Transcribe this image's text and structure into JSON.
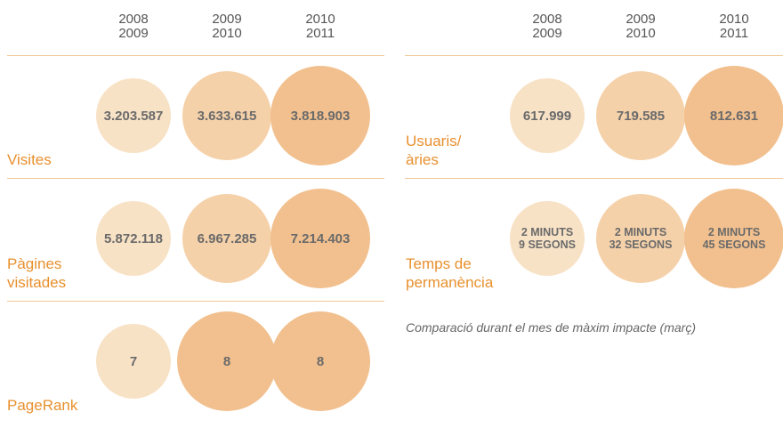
{
  "left": {
    "columns": [
      [
        "2008",
        "2009"
      ],
      [
        "2009",
        "2010"
      ],
      [
        "2010",
        "2011"
      ]
    ],
    "rows": [
      {
        "label": [
          "Visites"
        ],
        "values": [
          [
            "3.203.587"
          ],
          [
            "3.633.615"
          ],
          [
            "3.818.903"
          ]
        ]
      },
      {
        "label": [
          "Pàgines",
          "visitades"
        ],
        "values": [
          [
            "5.872.118"
          ],
          [
            "6.967.285"
          ],
          [
            "7.214.403"
          ]
        ]
      },
      {
        "label": [
          "PageRank"
        ],
        "values": [
          [
            "7"
          ],
          [
            "8"
          ],
          [
            "8"
          ]
        ]
      }
    ]
  },
  "right": {
    "columns": [
      [
        "2008",
        "2009"
      ],
      [
        "2009",
        "2010"
      ],
      [
        "2010",
        "2011"
      ]
    ],
    "rows": [
      {
        "label": [
          "Usuaris/",
          "àries"
        ],
        "values": [
          [
            "617.999"
          ],
          [
            "719.585"
          ],
          [
            "812.631"
          ]
        ]
      },
      {
        "label": [
          "Temps de",
          "permanència"
        ],
        "values": [
          [
            "2 MINUTS",
            "9 SEGONS"
          ],
          [
            "2 MINUTS",
            "32 SEGONS"
          ],
          [
            "2 MINUTS",
            "45 SEGONS"
          ]
        ]
      }
    ]
  },
  "note": "Comparació durant el mes de màxim impacte (març)"
}
